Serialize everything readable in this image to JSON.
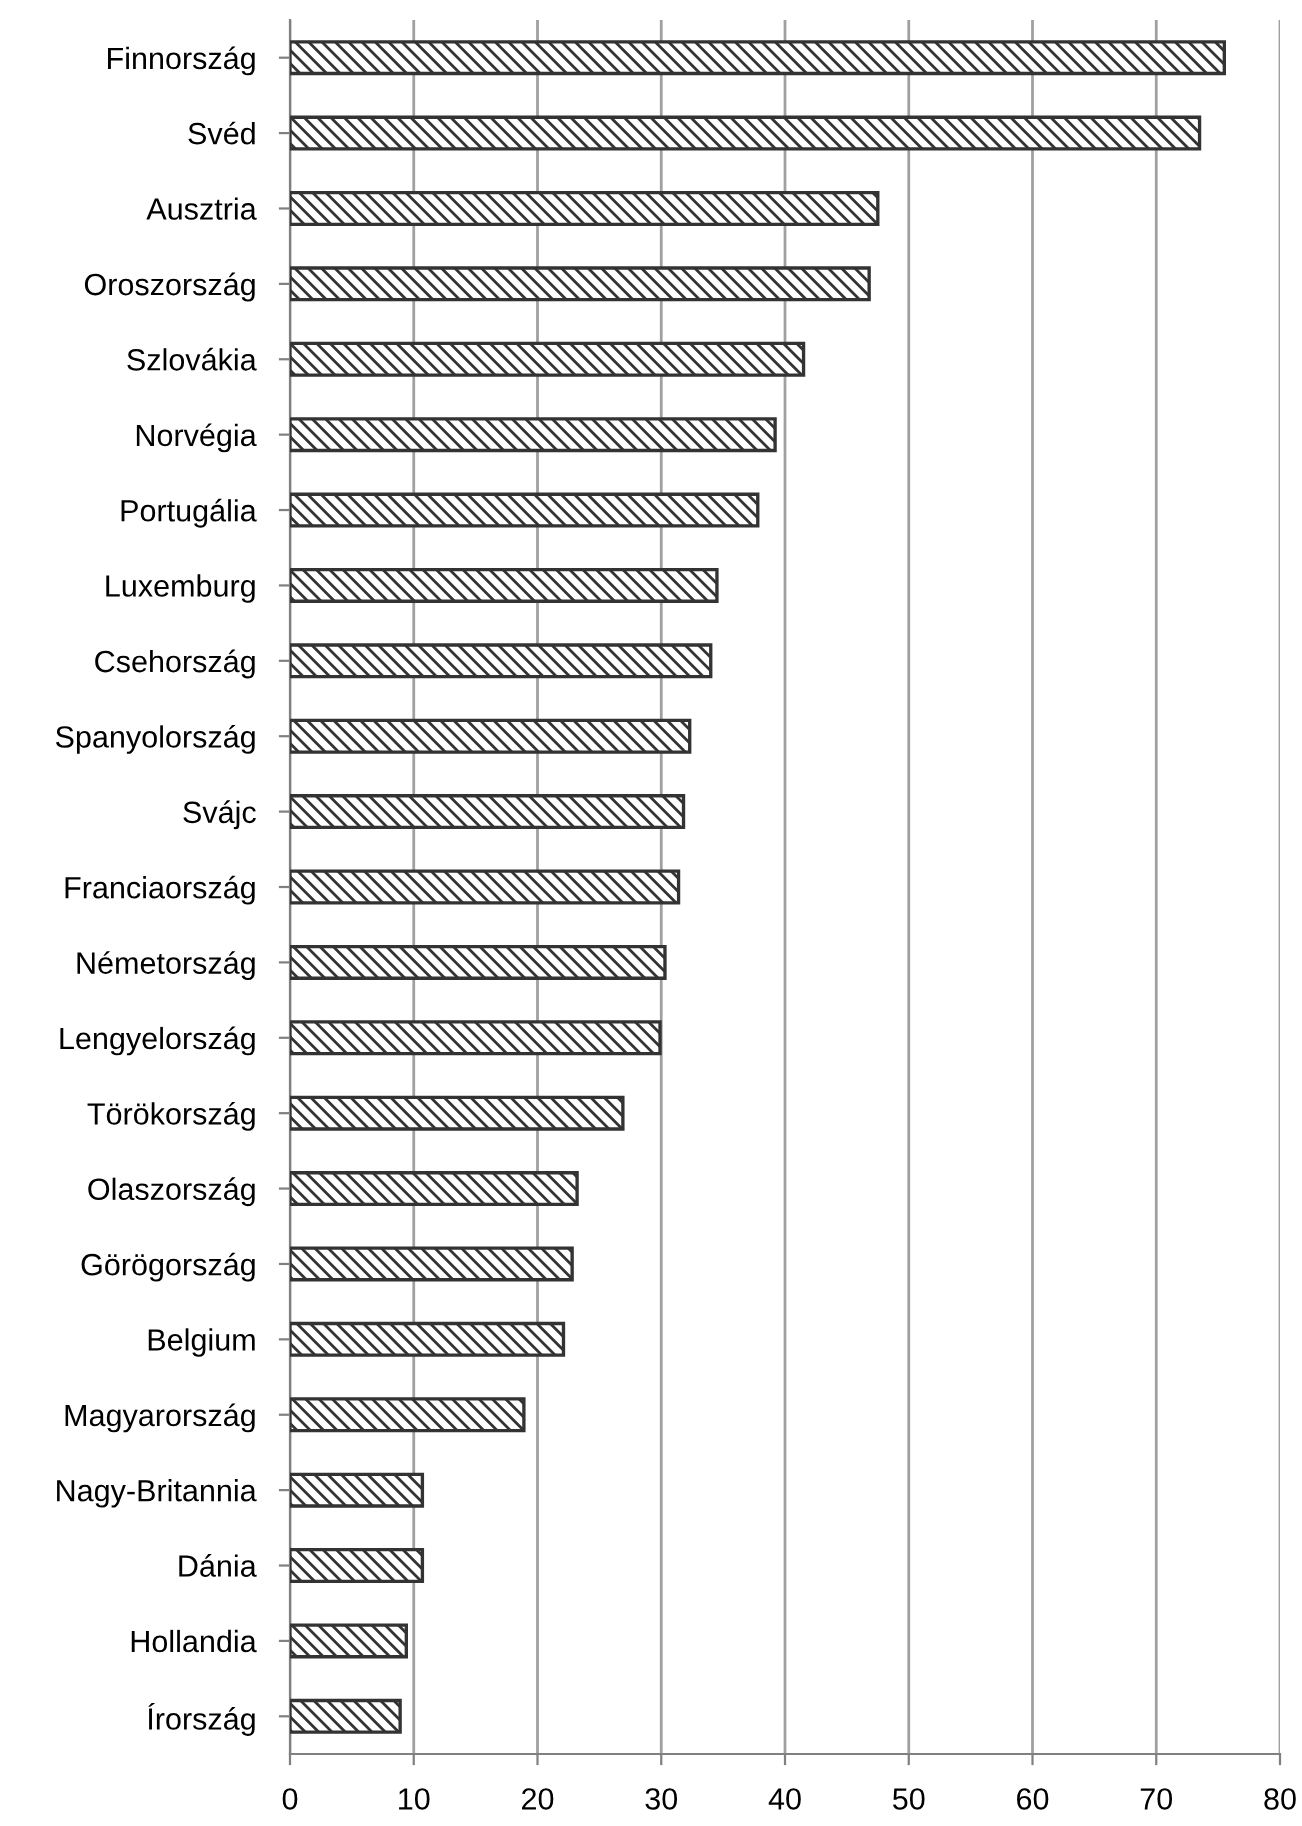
{
  "chart_data": {
    "type": "bar",
    "orientation": "horizontal",
    "categories": [
      "Finnország",
      "Svéd",
      "Ausztria",
      "Oroszország",
      "Szlovákia",
      "Norvégia",
      "Portugália",
      "Luxemburg",
      "Csehország",
      "Spanyolország",
      "Svájc",
      "Franciaország",
      "Németország",
      "Lengyelország",
      "Törökország",
      "Olaszország",
      "Görögország",
      "Belgium",
      "Magyarország",
      "Nagy-Britannia",
      "Dánia",
      "Hollandia",
      "Írország"
    ],
    "values": [
      75.5,
      73.5,
      47.5,
      46.8,
      41.5,
      39.2,
      37.8,
      34.5,
      34.0,
      32.3,
      31.8,
      31.4,
      30.3,
      29.9,
      26.9,
      23.2,
      22.8,
      22.1,
      18.9,
      10.7,
      10.7,
      9.4,
      8.9
    ],
    "color": "#333333",
    "xlim": [
      0,
      80
    ],
    "xticks": [
      0,
      10,
      20,
      30,
      40,
      50,
      60,
      70,
      80
    ],
    "grid": "x"
  }
}
